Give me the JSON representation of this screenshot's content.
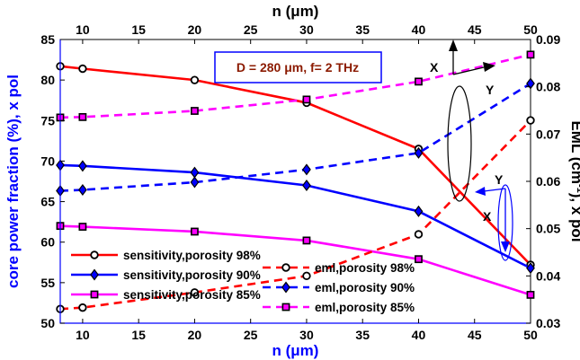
{
  "chart_data": {
    "type": "line",
    "title": "",
    "xlabel": "n (μm)",
    "x2label": "n (μm)",
    "ylabel": "core power fraction (%), x pol",
    "y2label": "EML (cm⁻¹), x pol",
    "y2label_main": "EML (cm",
    "y2label_sup": "-1",
    "y2label_tail": "), x pol",
    "xlim": [
      8,
      50
    ],
    "ylim": [
      50,
      85
    ],
    "y2lim": [
      0.03,
      0.09
    ],
    "xticks": [
      10,
      15,
      20,
      25,
      30,
      35,
      40,
      45,
      50
    ],
    "yticks": [
      50,
      55,
      60,
      65,
      70,
      75,
      80,
      85
    ],
    "y2ticks": [
      "0.03",
      "0.04",
      "0.05",
      "0.06",
      "0.07",
      "0.08",
      "0.09"
    ],
    "x": [
      8,
      10,
      20,
      30,
      40,
      50
    ],
    "annotation": "D = 280 μm, f= 2 THz",
    "axis_markers": {
      "x": "X",
      "y": "Y"
    },
    "series": [
      {
        "name": "sensitivity,porosity 98%",
        "axis": "left",
        "color": "#ff0000",
        "dash": false,
        "marker": "circle",
        "values": [
          81.7,
          81.4,
          80.0,
          77.2,
          71.5,
          57.2
        ]
      },
      {
        "name": "sensitivity,porosity 90%",
        "axis": "left",
        "color": "#0000ff",
        "dash": false,
        "marker": "diamond",
        "values": [
          69.5,
          69.4,
          68.6,
          67.0,
          63.8,
          56.8
        ]
      },
      {
        "name": "sensitivity,porosity 85%",
        "axis": "left",
        "color": "#ff00ff",
        "dash": false,
        "marker": "square",
        "values": [
          62.0,
          61.9,
          61.3,
          60.2,
          57.9,
          53.5
        ]
      },
      {
        "name": "eml,porosity 98%",
        "axis": "right",
        "color": "#ff0000",
        "dash": true,
        "marker": "circle",
        "values": [
          0.033,
          0.0333,
          0.0365,
          0.04,
          0.0488,
          0.0729
        ]
      },
      {
        "name": "eml,porosity 90%",
        "axis": "right",
        "color": "#0000ff",
        "dash": true,
        "marker": "diamond",
        "values": [
          0.058,
          0.0582,
          0.0598,
          0.0625,
          0.066,
          0.0807
        ]
      },
      {
        "name": "eml,porosity 85%",
        "axis": "right",
        "color": "#ff00ff",
        "dash": true,
        "marker": "square",
        "values": [
          0.0735,
          0.0736,
          0.0749,
          0.0773,
          0.0811,
          0.0868
        ]
      }
    ],
    "colors": {
      "left_axis": "#0000ff",
      "right_axis": "#000000",
      "annotation_text": "#8b1a00",
      "annotation_border": "#0000ff"
    }
  }
}
